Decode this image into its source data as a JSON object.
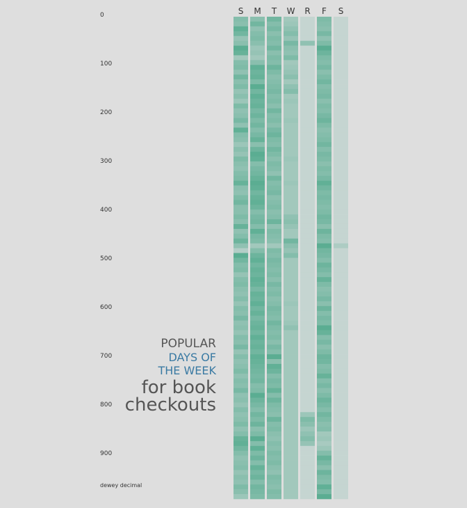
{
  "title": {
    "line1": "POPULAR",
    "line2": "DAYS OF",
    "line3": "THE WEEK",
    "line4": "for book",
    "line5": "checkouts"
  },
  "colors": {
    "background": "#dedede",
    "strong": "#4fa98b",
    "weak": "#c5d5d1",
    "highlight": "#3a7aa3",
    "text": "#555555"
  },
  "chart_data": {
    "type": "heatmap",
    "ylabel": "dewey decimal",
    "yticks": [
      0,
      100,
      200,
      300,
      400,
      500,
      600,
      700,
      800,
      900
    ],
    "ylim": [
      0,
      1000
    ],
    "days": [
      "S",
      "M",
      "T",
      "W",
      "R",
      "F",
      "S"
    ],
    "bin_size": 10,
    "value_scale": "0 = least popular, 1 = most popular",
    "series": [
      {
        "day": "S",
        "values": [
          0.55,
          0.5,
          0.85,
          0.7,
          0.4,
          0.5,
          0.9,
          0.8,
          0.3,
          0.55,
          0.6,
          0.45,
          0.7,
          0.5,
          0.6,
          0.4,
          0.5,
          0.35,
          0.6,
          0.45,
          0.5,
          0.65,
          0.45,
          0.85,
          0.55,
          0.5,
          0.35,
          0.5,
          0.4,
          0.6,
          0.5,
          0.45,
          0.55,
          0.6,
          0.8,
          0.5,
          0.45,
          0.6,
          0.7,
          0.5,
          0.5,
          0.6,
          0.5,
          0.8,
          0.45,
          0.55,
          0.75,
          0.45,
          0.15,
          0.9,
          0.7,
          0.55,
          0.6,
          0.4,
          0.55,
          0.6,
          0.5,
          0.45,
          0.55,
          0.4,
          0.55,
          0.5,
          0.65,
          0.45,
          0.5,
          0.4,
          0.55,
          0.5,
          0.65,
          0.4,
          0.55,
          0.45,
          0.5,
          0.6,
          0.45,
          0.55,
          0.5,
          0.65,
          0.45,
          0.5,
          0.4,
          0.55,
          0.45,
          0.5,
          0.6,
          0.45,
          0.55,
          0.8,
          0.85,
          0.7,
          0.55,
          0.45,
          0.5,
          0.55,
          0.4,
          0.5,
          0.45,
          0.6,
          0.5,
          0.35
        ]
      },
      {
        "day": "M",
        "values": [
          0.5,
          0.7,
          0.45,
          0.55,
          0.6,
          0.5,
          0.35,
          0.4,
          0.3,
          0.5,
          0.85,
          0.75,
          0.8,
          0.6,
          0.9,
          0.7,
          0.85,
          0.75,
          0.8,
          0.65,
          0.75,
          0.6,
          0.7,
          0.55,
          0.65,
          0.8,
          0.5,
          0.75,
          0.9,
          0.85,
          0.55,
          0.65,
          0.7,
          0.8,
          0.9,
          0.85,
          0.7,
          0.8,
          0.85,
          0.75,
          0.55,
          0.65,
          0.7,
          0.55,
          0.85,
          0.65,
          0.6,
          0.3,
          0.55,
          0.75,
          0.85,
          0.7,
          0.8,
          0.75,
          0.85,
          0.8,
          0.65,
          0.8,
          0.75,
          0.85,
          0.7,
          0.8,
          0.65,
          0.75,
          0.8,
          0.7,
          0.85,
          0.75,
          0.8,
          0.7,
          0.85,
          0.8,
          0.75,
          0.7,
          0.65,
          0.7,
          0.55,
          0.6,
          0.9,
          0.75,
          0.65,
          0.55,
          0.7,
          0.6,
          0.75,
          0.5,
          0.6,
          0.9,
          0.55,
          0.85,
          0.6,
          0.75,
          0.55,
          0.8,
          0.65,
          0.75,
          0.55,
          0.7,
          0.65,
          0.6
        ]
      },
      {
        "day": "T",
        "values": [
          0.7,
          0.55,
          0.65,
          0.5,
          0.6,
          0.55,
          0.7,
          0.5,
          0.6,
          0.55,
          0.75,
          0.6,
          0.5,
          0.55,
          0.6,
          0.65,
          0.55,
          0.6,
          0.5,
          0.7,
          0.55,
          0.6,
          0.5,
          0.65,
          0.75,
          0.6,
          0.55,
          0.7,
          0.6,
          0.5,
          0.6,
          0.55,
          0.45,
          0.7,
          0.55,
          0.6,
          0.65,
          0.5,
          0.55,
          0.6,
          0.5,
          0.55,
          0.75,
          0.45,
          0.6,
          0.55,
          0.5,
          0.3,
          0.6,
          0.55,
          0.65,
          0.6,
          0.55,
          0.6,
          0.5,
          0.65,
          0.55,
          0.6,
          0.5,
          0.55,
          0.65,
          0.6,
          0.55,
          0.7,
          0.6,
          0.55,
          0.6,
          0.5,
          0.65,
          0.55,
          0.9,
          0.5,
          0.85,
          0.75,
          0.55,
          0.65,
          0.6,
          0.8,
          0.55,
          0.75,
          0.6,
          0.55,
          0.5,
          0.75,
          0.55,
          0.6,
          0.5,
          0.45,
          0.55,
          0.5,
          0.6,
          0.55,
          0.6,
          0.5,
          0.45,
          0.6,
          0.55,
          0.5,
          0.6,
          0.55
        ]
      },
      {
        "day": "W",
        "values": [
          0.3,
          0.35,
          0.45,
          0.55,
          0.4,
          0.65,
          0.5,
          0.45,
          0.6,
          0.3,
          0.35,
          0.4,
          0.5,
          0.3,
          0.45,
          0.55,
          0.3,
          0.35,
          0.3,
          0.3,
          0.3,
          0.35,
          0.3,
          0.3,
          0.3,
          0.3,
          0.3,
          0.3,
          0.3,
          0.35,
          0.3,
          0.3,
          0.3,
          0.3,
          0.35,
          0.3,
          0.3,
          0.3,
          0.3,
          0.3,
          0.3,
          0.45,
          0.5,
          0.4,
          0.3,
          0.3,
          0.7,
          0.5,
          0.4,
          0.55,
          0.3,
          0.3,
          0.3,
          0.3,
          0.3,
          0.3,
          0.3,
          0.3,
          0.3,
          0.35,
          0.3,
          0.3,
          0.3,
          0.35,
          0.45,
          0.3,
          0.3,
          0.3,
          0.3,
          0.3,
          0.3,
          0.3,
          0.3,
          0.3,
          0.3,
          0.3,
          0.3,
          0.3,
          0.3,
          0.3,
          0.3,
          0.3,
          0.3,
          0.3,
          0.3,
          0.3,
          0.3,
          0.3,
          0.3,
          0.3,
          0.3,
          0.3,
          0.3,
          0.3,
          0.3,
          0.3,
          0.3,
          0.3,
          0.3,
          0.3
        ]
      },
      {
        "day": "R",
        "values": [
          0,
          0,
          0,
          0,
          0,
          0.45,
          0,
          0,
          0,
          0,
          0,
          0,
          0,
          0,
          0,
          0,
          0,
          0,
          0,
          0,
          0,
          0,
          0,
          0,
          0,
          0,
          0,
          0,
          0,
          0,
          0,
          0,
          0,
          0,
          0,
          0,
          0,
          0,
          0,
          0,
          0,
          0,
          0,
          0,
          0,
          0,
          0,
          0,
          0,
          0,
          0,
          0,
          0,
          0,
          0,
          0,
          0,
          0,
          0,
          0,
          0,
          0,
          0,
          0,
          0,
          0,
          0,
          0,
          0,
          0,
          0,
          0,
          0,
          0,
          0,
          0,
          0,
          0,
          0,
          0,
          0,
          0,
          0.35,
          0.6,
          0.5,
          0.35,
          0.45,
          0.55,
          0.4,
          0,
          0,
          0,
          0,
          0,
          0,
          0,
          0,
          0,
          0,
          0
        ]
      },
      {
        "day": "F",
        "values": [
          0.6,
          0.55,
          0.5,
          0.65,
          0.45,
          0.6,
          0.9,
          0.75,
          0.6,
          0.55,
          0.65,
          0.5,
          0.6,
          0.7,
          0.55,
          0.6,
          0.65,
          0.5,
          0.6,
          0.55,
          0.65,
          0.75,
          0.6,
          0.5,
          0.55,
          0.6,
          0.7,
          0.55,
          0.65,
          0.6,
          0.5,
          0.6,
          0.55,
          0.65,
          0.85,
          0.7,
          0.6,
          0.65,
          0.6,
          0.55,
          0.6,
          0.7,
          0.65,
          0.5,
          0.75,
          0.6,
          0.55,
          0.9,
          0.7,
          0.65,
          0.55,
          0.75,
          0.65,
          0.55,
          0.8,
          0.6,
          0.5,
          0.55,
          0.65,
          0.5,
          0.75,
          0.55,
          0.65,
          0.6,
          0.9,
          0.8,
          0.55,
          0.65,
          0.5,
          0.6,
          0.75,
          0.7,
          0.55,
          0.6,
          0.8,
          0.55,
          0.65,
          0.5,
          0.6,
          0.75,
          0.65,
          0.55,
          0.7,
          0.6,
          0.5,
          0.55,
          0.3,
          0.35,
          0.25,
          0.35,
          0.55,
          0.8,
          0.65,
          0.5,
          0.75,
          0.6,
          0.55,
          0.85,
          0.65,
          0.9
        ]
      },
      {
        "day": "S",
        "values": [
          0,
          0,
          0,
          0,
          0,
          0,
          0,
          0,
          0,
          0,
          0,
          0,
          0,
          0,
          0,
          0,
          0,
          0,
          0,
          0,
          0,
          0,
          0,
          0,
          0,
          0,
          0,
          0,
          0,
          0,
          0,
          0,
          0,
          0,
          0,
          0,
          0,
          0,
          0,
          0,
          0,
          0,
          0,
          0,
          0,
          0,
          0,
          0.2,
          0,
          0,
          0,
          0,
          0,
          0,
          0,
          0,
          0,
          0,
          0,
          0,
          0,
          0,
          0,
          0,
          0,
          0,
          0,
          0,
          0,
          0,
          0,
          0,
          0,
          0,
          0,
          0,
          0,
          0,
          0,
          0,
          0,
          0,
          0,
          0,
          0,
          0,
          0,
          0,
          0,
          0,
          0,
          0,
          0,
          0,
          0,
          0,
          0,
          0,
          0,
          0
        ]
      }
    ]
  }
}
